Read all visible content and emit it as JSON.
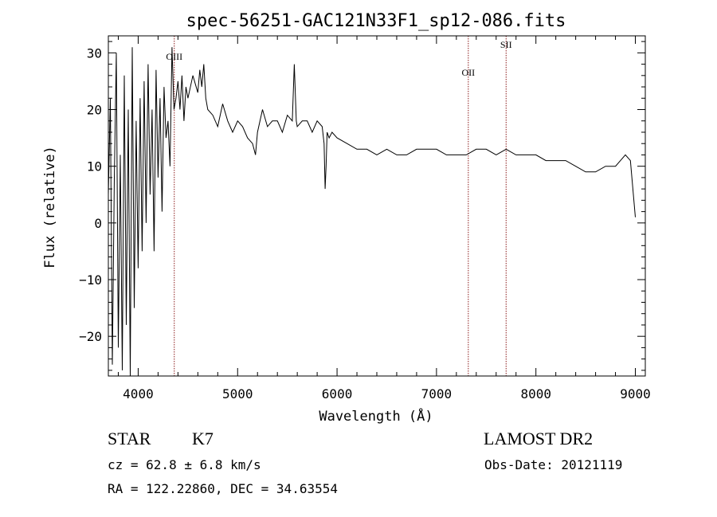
{
  "footer": {
    "object_type": "STAR",
    "object_class": "K7",
    "survey": "LAMOST DR2",
    "cz": "cz = 62.8 ± 6.8 km/s",
    "obs_date": "Obs-Date: 20121119",
    "radec": "RA = 122.22860, DEC =  34.63554"
  },
  "chart_data": {
    "type": "line",
    "title": "spec-56251-GAC121N33F1_sp12-086.fits",
    "xlabel": "Wavelength (Å)",
    "ylabel": "Flux (relative)",
    "xlim": [
      3700,
      9100
    ],
    "ylim": [
      -27,
      33
    ],
    "xticks": [
      4000,
      5000,
      6000,
      7000,
      8000,
      9000
    ],
    "yticks": [
      -20,
      -10,
      0,
      10,
      20,
      30
    ],
    "line_color": "#000000",
    "marker_color": "#8b1a1a",
    "grid": false,
    "lines": [
      {
        "label": "OIII",
        "x": 4363
      },
      {
        "label": "OII",
        "x": 7320
      },
      {
        "label": "SII",
        "x": 7700
      }
    ],
    "series": [
      {
        "x": [
          3700,
          3720,
          3740,
          3760,
          3780,
          3800,
          3820,
          3840,
          3860,
          3880,
          3900,
          3920,
          3940,
          3960,
          3980,
          4000,
          4020,
          4040,
          4060,
          4080,
          4100,
          4120,
          4140,
          4160,
          4180,
          4200,
          4220,
          4240,
          4260,
          4280,
          4300,
          4320,
          4340,
          4360,
          4380,
          4400,
          4420,
          4440,
          4460,
          4480,
          4500,
          4550,
          4600,
          4620,
          4640,
          4660,
          4680,
          4700,
          4750,
          4800,
          4850,
          4900,
          4950,
          5000,
          5050,
          5100,
          5150,
          5180,
          5200,
          5250,
          5300,
          5350,
          5400,
          5450,
          5500,
          5550,
          5570,
          5590,
          5600,
          5650,
          5700,
          5750,
          5800,
          5850,
          5870,
          5880,
          5890,
          5900,
          5920,
          5950,
          6000,
          6100,
          6200,
          6300,
          6400,
          6500,
          6600,
          6700,
          6800,
          6900,
          7000,
          7100,
          7200,
          7300,
          7400,
          7500,
          7600,
          7700,
          7800,
          7900,
          8000,
          8100,
          8200,
          8300,
          8400,
          8500,
          8600,
          8700,
          8800,
          8850,
          8900,
          8950,
          9000
        ],
        "values": [
          5,
          22,
          -25,
          8,
          30,
          -22,
          12,
          -26,
          26,
          -18,
          20,
          -27,
          31,
          -15,
          18,
          -8,
          22,
          -5,
          25,
          0,
          28,
          5,
          20,
          -5,
          27,
          8,
          22,
          2,
          24,
          15,
          18,
          10,
          31,
          20,
          22,
          25,
          20,
          26,
          18,
          24,
          22,
          26,
          23,
          27,
          24,
          28,
          22,
          20,
          19,
          17,
          21,
          18,
          16,
          18,
          17,
          15,
          14,
          12,
          16,
          20,
          17,
          18,
          18,
          16,
          19,
          18,
          28,
          18,
          17,
          18,
          18,
          16,
          18,
          17,
          14,
          6,
          10,
          16,
          15,
          16,
          15,
          14,
          13,
          13,
          12,
          13,
          12,
          12,
          13,
          13,
          13,
          12,
          12,
          12,
          13,
          13,
          12,
          13,
          12,
          12,
          12,
          11,
          11,
          11,
          10,
          9,
          9,
          10,
          10,
          11,
          12,
          11,
          1
        ]
      }
    ]
  }
}
